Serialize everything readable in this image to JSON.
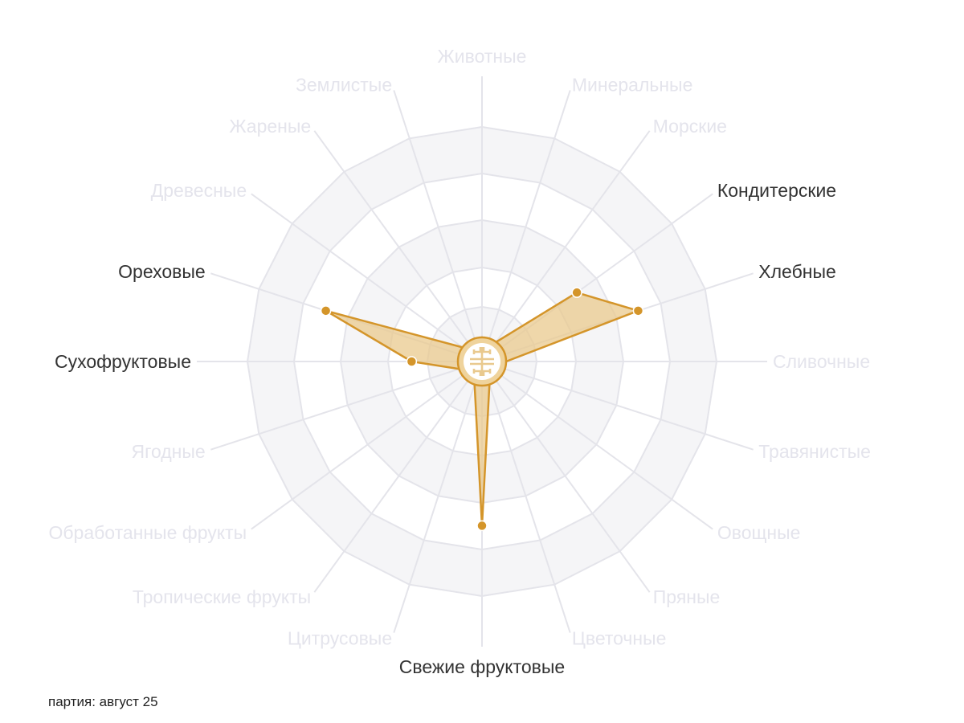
{
  "chart_data": {
    "type": "radar",
    "categories": [
      "Животные",
      "Минеральные",
      "Морские",
      "Кондитерские",
      "Хлебные",
      "Сливочные",
      "Травянистые",
      "Овощные",
      "Пряные",
      "Цветочные",
      "Свежие фруктовые",
      "Цитрусовые",
      "Тропические фрукты",
      "Обработанные фрукты",
      "Ягодные",
      "Сухофруктовые",
      "Ореховые",
      "Древесные",
      "Жареные",
      "Землистые"
    ],
    "values": [
      0,
      0,
      0,
      2.5,
      3.5,
      0,
      0,
      0,
      0,
      0,
      3.5,
      0,
      0,
      0,
      0,
      1.5,
      3.5,
      0,
      0,
      0
    ],
    "rlim": [
      0,
      5
    ],
    "grid": true,
    "legend": "none"
  },
  "footer": {
    "batch_label": "партия: август 25"
  },
  "colors": {
    "fill": "#e9c98e",
    "stroke": "#d4952a",
    "active_label": "#333333",
    "inactive_label": "#e4e4ec",
    "grid": "#e4e4ea",
    "band": "#f5f5f7"
  },
  "hub_icon": "shou-longevity-symbol-icon"
}
